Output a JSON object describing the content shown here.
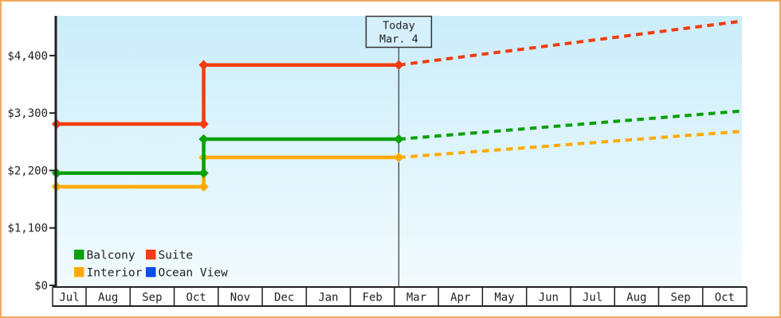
{
  "window": {
    "border_color": "#f0a95e",
    "background": "#ffffff",
    "plot_background_top": "#cbedfa",
    "plot_background_bottom": "#f2fbfe",
    "axis_color": "#222222"
  },
  "chart_data": {
    "type": "line",
    "description": "Cruise cabin price history by category with future price projection",
    "today": {
      "label_line1": "Today",
      "label_line2": "Mar. 4",
      "month_index": 8,
      "day_fraction": 0.1
    },
    "price_change_point": {
      "month_index": 3,
      "day_fraction": 0.67
    },
    "x_axis": {
      "months": [
        "Jul",
        "Aug",
        "Sep",
        "Oct",
        "Nov",
        "Dec",
        "Jan",
        "Feb",
        "Mar",
        "Apr",
        "May",
        "Jun",
        "Jul",
        "Aug",
        "Sep",
        "Oct"
      ]
    },
    "y_axis": {
      "max_value": 5160,
      "ticks": [
        {
          "value": 0,
          "label": "$0"
        },
        {
          "value": 1100,
          "label": "$1,100"
        },
        {
          "value": 2200,
          "label": "$2,200"
        },
        {
          "value": 3300,
          "label": "$3,300"
        },
        {
          "value": 4400,
          "label": "$4,400"
        }
      ]
    },
    "series": [
      {
        "name": "Interior",
        "color": "#ffaa00",
        "has_line": true,
        "initial_price": 1890,
        "current_price": 2450,
        "projected_price": 2950
      },
      {
        "name": "Balcony",
        "color": "#0aa00a",
        "has_line": true,
        "initial_price": 2150,
        "current_price": 2800,
        "projected_price": 3340
      },
      {
        "name": "Suite",
        "color": "#f23c11",
        "has_line": true,
        "initial_price": 3090,
        "current_price": 4220,
        "projected_price": 5060
      },
      {
        "name": "Ocean View",
        "color": "#0b4af0",
        "has_line": false
      }
    ],
    "legend": {
      "items": [
        {
          "label": "Balcony",
          "color": "#0aa00a"
        },
        {
          "label": "Suite",
          "color": "#f23c11"
        },
        {
          "label": "Interior",
          "color": "#ffaa00"
        },
        {
          "label": "Ocean View",
          "color": "#0b4af0"
        }
      ]
    }
  }
}
